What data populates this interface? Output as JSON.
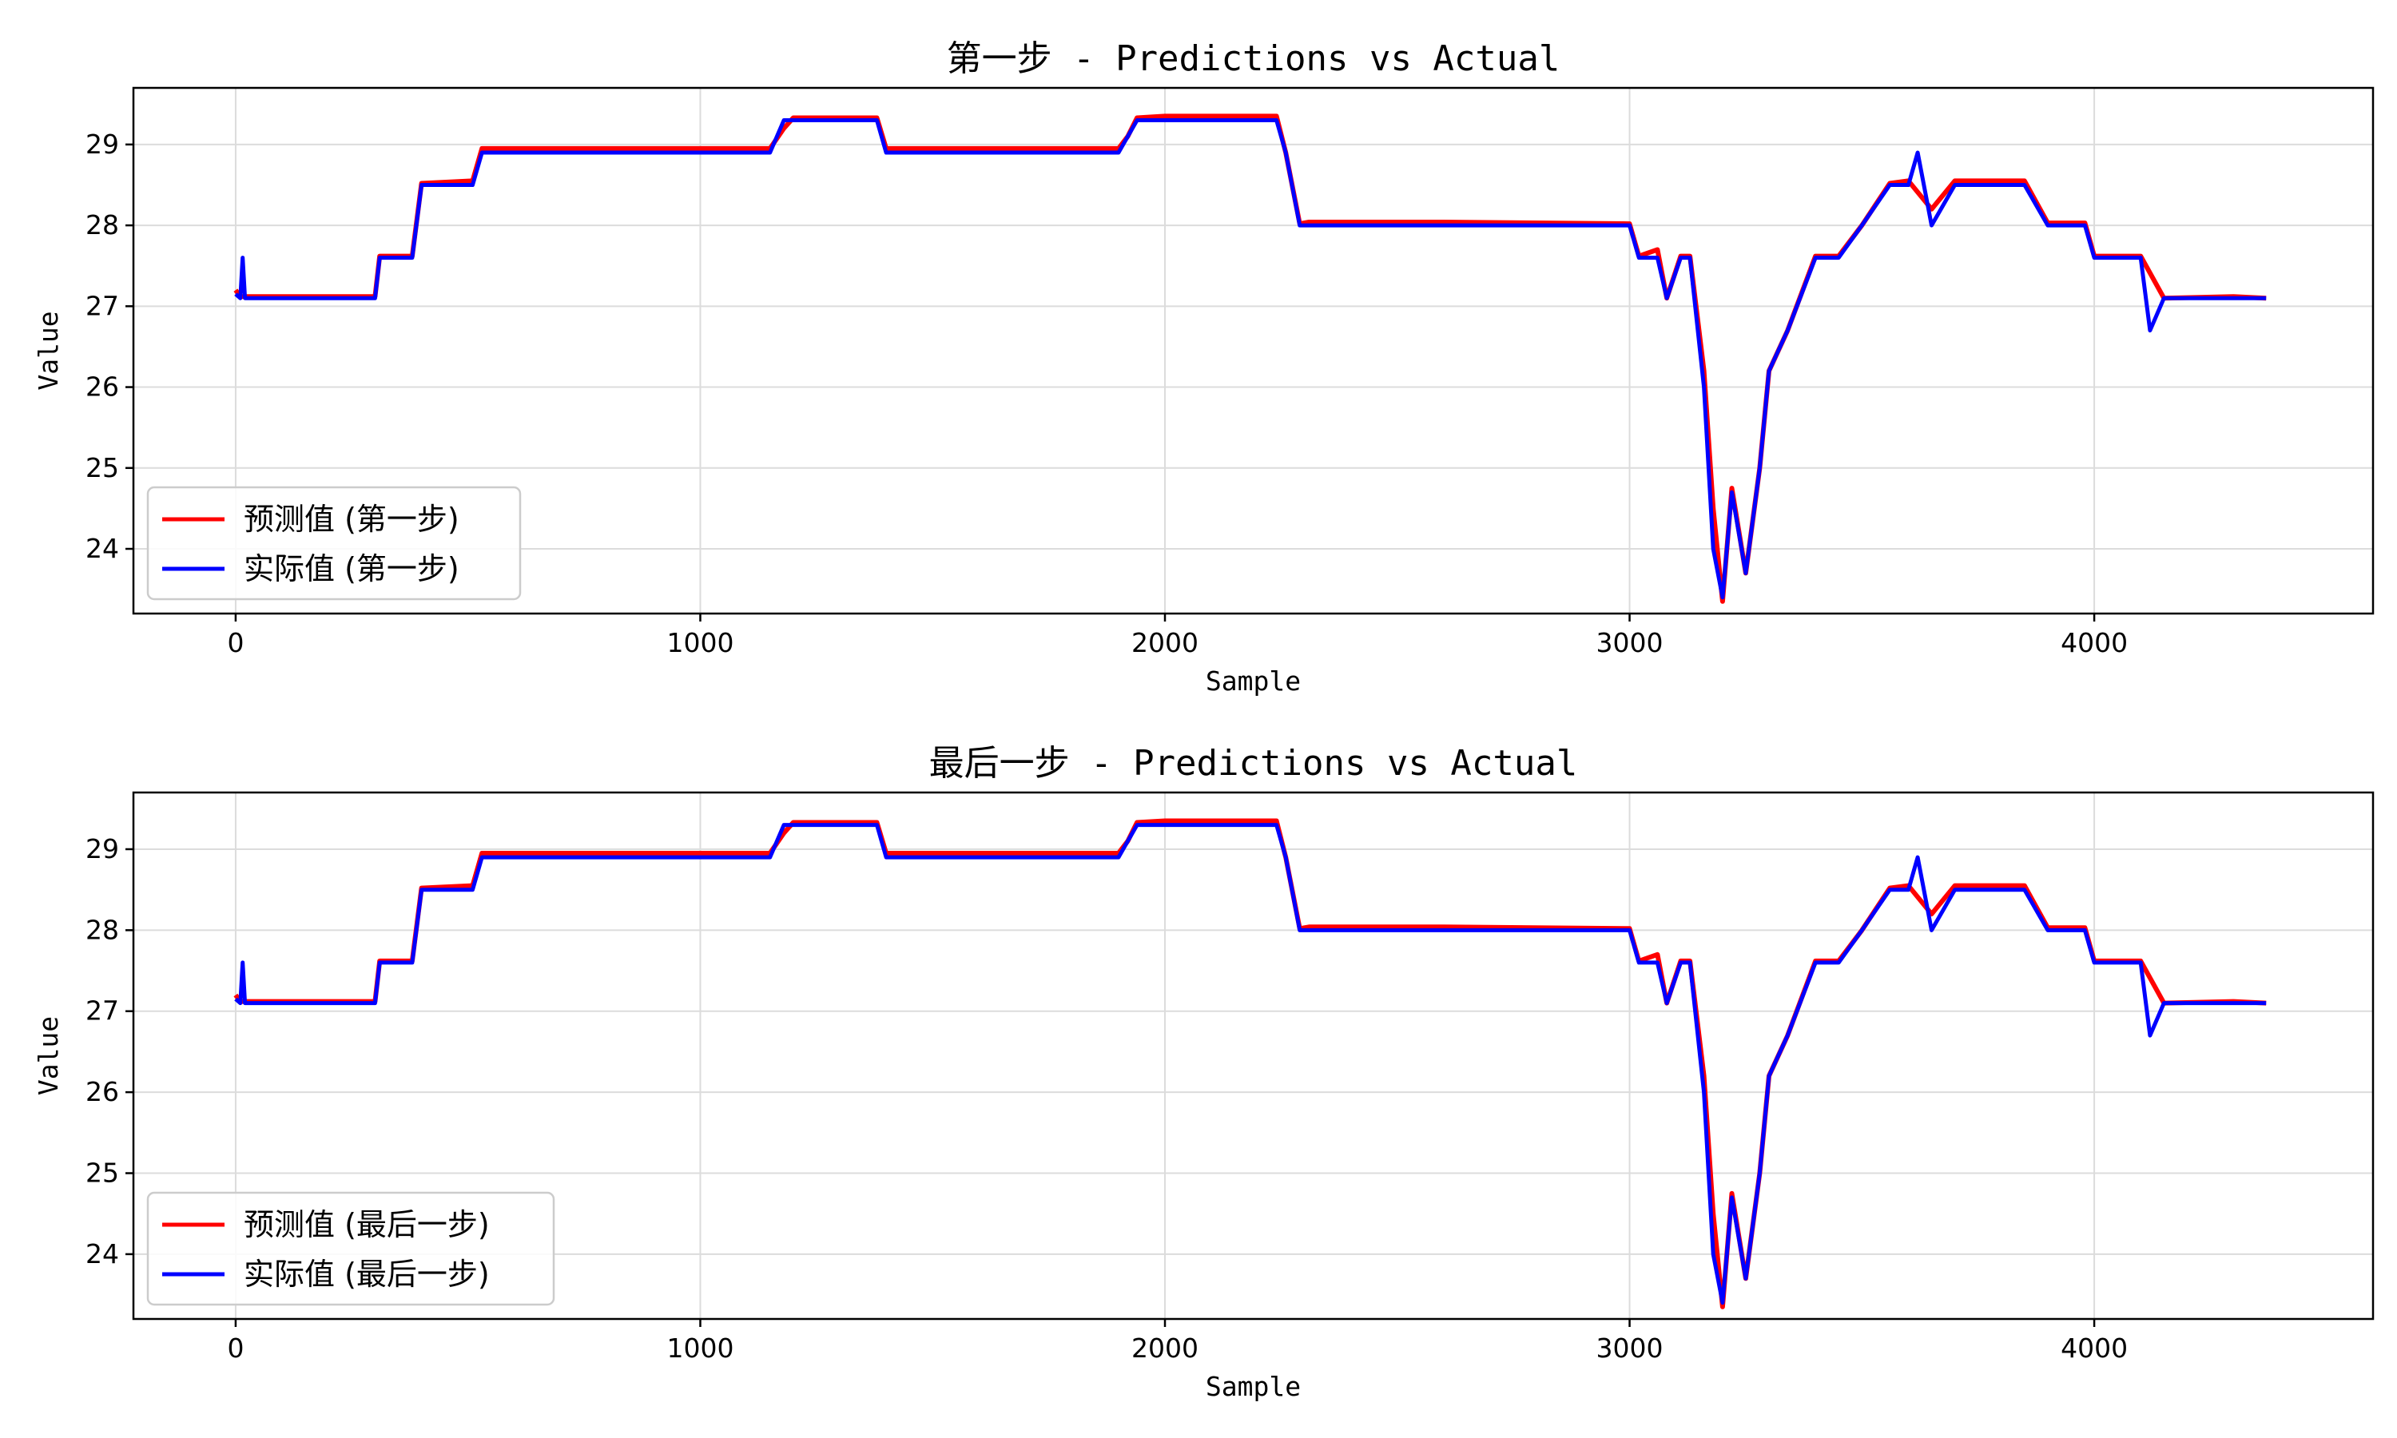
{
  "chart_data": [
    {
      "type": "line",
      "title": "第一步 - Predictions vs Actual",
      "xlabel": "Sample",
      "ylabel": "Value",
      "xlim": [
        -220,
        4600
      ],
      "ylim": [
        23.2,
        29.7
      ],
      "xticks": [
        "0",
        "1000",
        "2000",
        "3000",
        "4000"
      ],
      "yticks": [
        "24",
        "25",
        "26",
        "27",
        "28",
        "29"
      ],
      "grid": true,
      "legend": "lower-left",
      "series": [
        {
          "name": "预测值 (第一步)",
          "color": "#ff0000",
          "x": [
            0,
            10,
            300,
            310,
            380,
            400,
            510,
            530,
            1000,
            1150,
            1180,
            1200,
            1380,
            1400,
            1600,
            1640,
            1900,
            1920,
            1940,
            2000,
            2240,
            2260,
            2290,
            2310,
            2600,
            3000,
            3020,
            3060,
            3080,
            3110,
            3130,
            3160,
            3180,
            3200,
            3220,
            3250,
            3280,
            3300,
            3340,
            3400,
            3450,
            3500,
            3560,
            3600,
            3650,
            3700,
            3850,
            3900,
            3980,
            4000,
            4100,
            4150,
            4300,
            4370
          ],
          "y": [
            27.2,
            27.12,
            27.12,
            27.62,
            27.62,
            28.52,
            28.55,
            28.95,
            28.95,
            28.95,
            29.2,
            29.33,
            29.33,
            28.95,
            28.95,
            28.95,
            28.95,
            29.1,
            29.33,
            29.35,
            29.35,
            28.9,
            28.02,
            28.04,
            28.04,
            28.02,
            27.62,
            27.7,
            27.1,
            27.62,
            27.62,
            26.2,
            24.5,
            23.35,
            24.75,
            23.7,
            25.0,
            26.2,
            26.7,
            27.62,
            27.62,
            28.0,
            28.52,
            28.55,
            28.2,
            28.55,
            28.55,
            28.03,
            28.03,
            27.62,
            27.62,
            27.1,
            27.12,
            27.1
          ]
        },
        {
          "name": "实际值 (第一步)",
          "color": "#0000ff",
          "x": [
            0,
            10,
            15,
            20,
            300,
            310,
            380,
            400,
            510,
            530,
            1000,
            1150,
            1180,
            1200,
            1380,
            1400,
            1600,
            1640,
            1900,
            1920,
            1940,
            2000,
            2240,
            2260,
            2290,
            2310,
            2600,
            3000,
            3020,
            3060,
            3080,
            3110,
            3130,
            3160,
            3180,
            3200,
            3220,
            3250,
            3280,
            3300,
            3340,
            3400,
            3450,
            3500,
            3560,
            3600,
            3620,
            3650,
            3700,
            3850,
            3900,
            3980,
            4000,
            4100,
            4120,
            4150,
            4300,
            4370
          ],
          "y": [
            27.15,
            27.1,
            27.6,
            27.1,
            27.1,
            27.6,
            27.6,
            28.5,
            28.5,
            28.9,
            28.9,
            28.9,
            29.3,
            29.3,
            29.3,
            28.9,
            28.9,
            28.9,
            28.9,
            29.1,
            29.3,
            29.3,
            29.3,
            28.9,
            28.0,
            28.0,
            28.0,
            28.0,
            27.6,
            27.6,
            27.1,
            27.6,
            27.6,
            26.0,
            24.0,
            23.4,
            24.7,
            23.7,
            25.0,
            26.2,
            26.7,
            27.6,
            27.6,
            28.0,
            28.5,
            28.5,
            28.9,
            28.0,
            28.5,
            28.5,
            28.0,
            28.0,
            27.6,
            27.6,
            26.7,
            27.1,
            27.1,
            27.1
          ]
        }
      ]
    },
    {
      "type": "line",
      "title": "最后一步 - Predictions vs Actual",
      "xlabel": "Sample",
      "ylabel": "Value",
      "xlim": [
        -220,
        4600
      ],
      "ylim": [
        23.2,
        29.7
      ],
      "xticks": [
        "0",
        "1000",
        "2000",
        "3000",
        "4000"
      ],
      "yticks": [
        "24",
        "25",
        "26",
        "27",
        "28",
        "29"
      ],
      "grid": true,
      "legend": "lower-left",
      "series": [
        {
          "name": "预测值 (最后一步)",
          "color": "#ff0000",
          "x": [
            0,
            10,
            300,
            310,
            380,
            400,
            510,
            530,
            1000,
            1150,
            1180,
            1200,
            1380,
            1400,
            1600,
            1640,
            1900,
            1920,
            1940,
            2000,
            2240,
            2260,
            2290,
            2310,
            2600,
            3000,
            3020,
            3060,
            3080,
            3110,
            3130,
            3160,
            3180,
            3200,
            3220,
            3250,
            3280,
            3300,
            3340,
            3400,
            3450,
            3500,
            3560,
            3600,
            3650,
            3700,
            3850,
            3900,
            3980,
            4000,
            4100,
            4150,
            4300,
            4370
          ],
          "y": [
            27.2,
            27.12,
            27.12,
            27.62,
            27.62,
            28.52,
            28.55,
            28.95,
            28.95,
            28.95,
            29.2,
            29.33,
            29.33,
            28.95,
            28.95,
            28.95,
            28.95,
            29.1,
            29.33,
            29.35,
            29.35,
            28.9,
            28.02,
            28.04,
            28.04,
            28.02,
            27.62,
            27.7,
            27.1,
            27.62,
            27.62,
            26.2,
            24.5,
            23.35,
            24.75,
            23.7,
            25.0,
            26.2,
            26.7,
            27.62,
            27.62,
            28.0,
            28.52,
            28.55,
            28.2,
            28.55,
            28.55,
            28.03,
            28.03,
            27.62,
            27.62,
            27.1,
            27.12,
            27.1
          ]
        },
        {
          "name": "实际值 (最后一步)",
          "color": "#0000ff",
          "x": [
            0,
            10,
            15,
            20,
            300,
            310,
            380,
            400,
            510,
            530,
            1000,
            1150,
            1180,
            1200,
            1380,
            1400,
            1600,
            1640,
            1900,
            1920,
            1940,
            2000,
            2240,
            2260,
            2290,
            2310,
            2600,
            3000,
            3020,
            3060,
            3080,
            3110,
            3130,
            3160,
            3180,
            3200,
            3220,
            3250,
            3280,
            3300,
            3340,
            3400,
            3450,
            3500,
            3560,
            3600,
            3620,
            3650,
            3700,
            3850,
            3900,
            3980,
            4000,
            4100,
            4120,
            4150,
            4300,
            4370
          ],
          "y": [
            27.15,
            27.1,
            27.6,
            27.1,
            27.1,
            27.6,
            27.6,
            28.5,
            28.5,
            28.9,
            28.9,
            28.9,
            29.3,
            29.3,
            29.3,
            28.9,
            28.9,
            28.9,
            28.9,
            29.1,
            29.3,
            29.3,
            29.3,
            28.9,
            28.0,
            28.0,
            28.0,
            28.0,
            27.6,
            27.6,
            27.1,
            27.6,
            27.6,
            26.0,
            24.0,
            23.4,
            24.7,
            23.7,
            25.0,
            26.2,
            26.7,
            27.6,
            27.6,
            28.0,
            28.5,
            28.5,
            28.9,
            28.0,
            28.5,
            28.5,
            28.0,
            28.0,
            27.6,
            27.6,
            26.7,
            27.1,
            27.1,
            27.1
          ]
        }
      ]
    }
  ]
}
